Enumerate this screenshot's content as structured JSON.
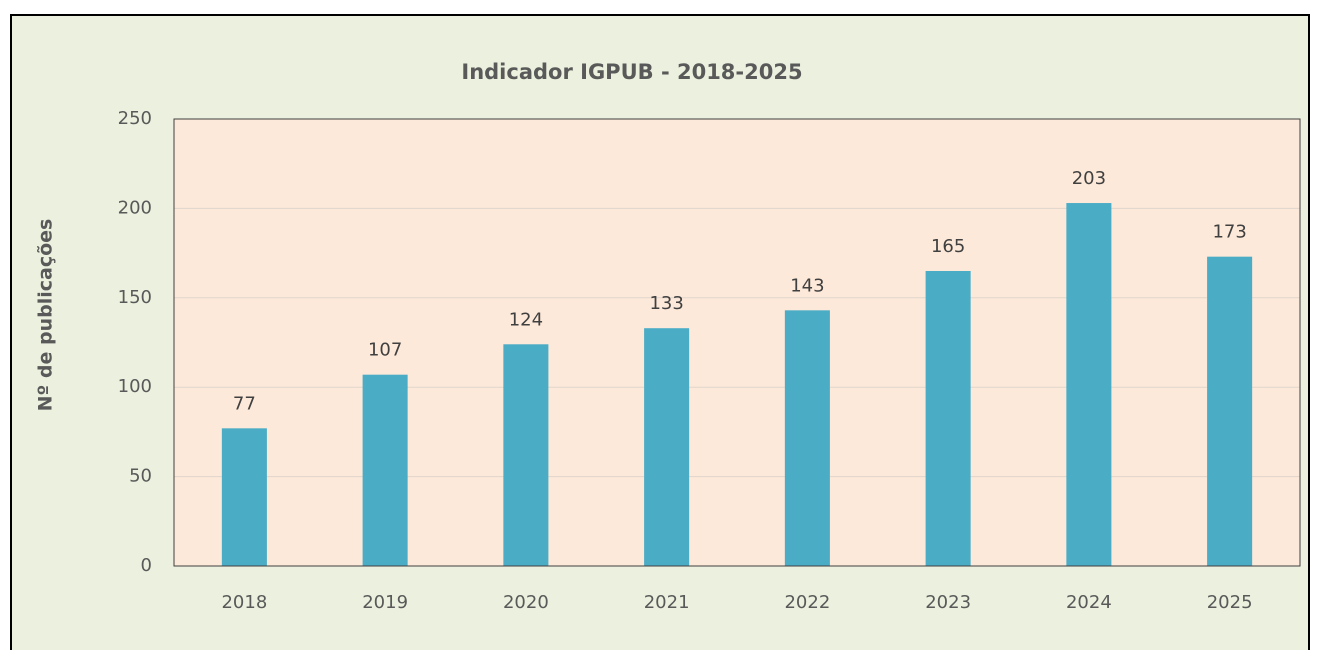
{
  "chart_data": {
    "type": "bar",
    "title": "Indicador IGPUB - 2018-2025",
    "y_label": "Nº de publicações",
    "categories": [
      "2018",
      "2019",
      "2020",
      "2021",
      "2022",
      "2023",
      "2024",
      "2025"
    ],
    "values": [
      77,
      107,
      124,
      133,
      143,
      165,
      203,
      173
    ],
    "color": "#4bacc6",
    "ylim": [
      0,
      250
    ],
    "yticks": [
      0,
      50,
      100,
      150,
      200,
      250
    ],
    "grid": true
  }
}
